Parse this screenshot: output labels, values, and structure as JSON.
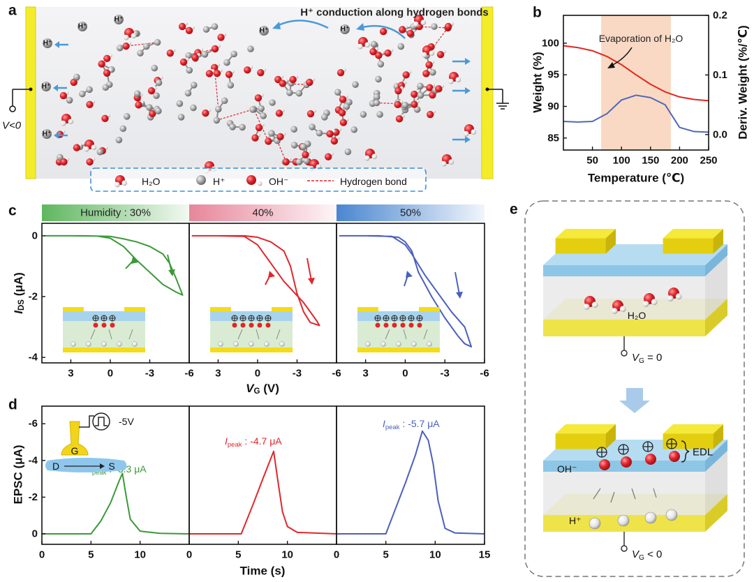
{
  "panel_labels": [
    "a",
    "b",
    "c",
    "d",
    "e"
  ],
  "diagram_a": {
    "title": "H⁺ conduction along  hydrogen bonds",
    "voltage": "V<0",
    "h_labels": [
      "H⁺",
      "H⁺",
      "H⁺",
      "H⁺",
      "H⁺",
      "H⁺",
      "H⁺"
    ],
    "legend": [
      "H₂O",
      "H⁺",
      "OH⁻",
      "Hydrogen bond"
    ]
  },
  "diagram_e": {
    "water": "H₂O",
    "vg_top": {
      "main": "V",
      "sub": "G",
      "rest": " = 0"
    },
    "edl": "EDL",
    "oh": "OH⁻",
    "h": "H⁺",
    "vg_bottom": {
      "main": "V",
      "sub": "G",
      "rest": " < 0"
    }
  },
  "inset_d": {
    "gate": "G",
    "drain": "D",
    "source": "S",
    "pulse": "-5V"
  },
  "chart_data": [
    {
      "type": "line",
      "x_label": "Temperature (℃)",
      "y_label": "Weight (%)",
      "y2_label": "Deriv. Weight (%/℃)",
      "annotation": "Evaporation of H₂O",
      "xlim": [
        0,
        250
      ],
      "xticks": [
        50,
        100,
        150,
        200,
        250
      ],
      "ylim": [
        83.1,
        104.4
      ],
      "yticks": [
        85,
        90,
        95,
        100
      ],
      "y2lim": [
        -0.026,
        0.2
      ],
      "y2ticks": [
        {
          "value": 0,
          "label": "0.0"
        },
        0.1,
        0.2
      ],
      "shade_x": [
        65,
        185
      ],
      "shade_color": "#f9d9c3",
      "x": [
        0,
        25,
        50,
        75,
        100,
        125,
        150,
        175,
        200,
        225,
        250
      ],
      "series": [
        {
          "color": "#e3261f",
          "values": [
            99.6,
            99.3,
            98.8,
            97.9,
            96.6,
            95.0,
            93.5,
            92.3,
            91.5,
            91.1,
            90.9
          ]
        },
        {
          "color": "#5068b8",
          "axis": "y2",
          "values": [
            0.022,
            0.021,
            0.022,
            0.035,
            0.058,
            0.066,
            0.062,
            0.05,
            0.012,
            0.005,
            0.004
          ]
        }
      ]
    },
    {
      "type": "line",
      "title": "Humidity : 30%",
      "title_color": "#5fb65f",
      "y_label": {
        "main": "I",
        "sub": "DS",
        "rest": " (μA)"
      },
      "xlim": [
        5.2,
        -6
      ],
      "xticks": [
        3,
        0,
        -3,
        -6
      ],
      "ylim": [
        -4.18,
        0.41
      ],
      "yticks": [
        0,
        -2,
        -4
      ],
      "x": [
        5,
        2,
        0,
        -1,
        -2,
        -3,
        -4,
        -4.5,
        -5,
        -5.5,
        -5,
        -4,
        -3,
        -2,
        -1,
        0,
        1,
        3,
        5
      ],
      "series": [
        {
          "color": "#3a9a3a",
          "values": [
            0,
            0,
            -0.02,
            -0.1,
            -0.2,
            -0.35,
            -0.6,
            -0.9,
            -1.4,
            -1.95,
            -1.85,
            -1.6,
            -1.2,
            -0.8,
            -0.35,
            -0.08,
            -0.01,
            0,
            0
          ]
        }
      ]
    },
    {
      "type": "line",
      "title": "40%",
      "title_color": "#e7869a",
      "x_label": {
        "main": "V",
        "sub": "G",
        "rest": " (V)"
      },
      "xlim": [
        5.2,
        -6
      ],
      "xticks": [
        3,
        0,
        -3,
        -6
      ],
      "ylim": [
        -4.18,
        0.41
      ],
      "x": [
        5,
        2,
        1,
        0,
        -1,
        -2,
        -2.5,
        -3,
        -3.5,
        -4,
        -4.7,
        -4.5,
        -3.5,
        -2,
        -1,
        0,
        1,
        3,
        5
      ],
      "series": [
        {
          "color": "#e0262b",
          "values": [
            0,
            0,
            0,
            -0.05,
            -0.2,
            -0.5,
            -1.0,
            -1.9,
            -2.5,
            -2.85,
            -2.95,
            -2.8,
            -2.2,
            -1.5,
            -0.9,
            -0.3,
            -0.02,
            0,
            0
          ]
        }
      ]
    },
    {
      "type": "line",
      "title": "50%",
      "title_color": "#4a86d0",
      "xlim": [
        5.2,
        -6
      ],
      "xticks": [
        3,
        0,
        -3,
        -6
      ],
      "ylim": [
        -4.18,
        0.41
      ],
      "x": [
        5,
        2,
        0.5,
        0,
        -0.5,
        -1,
        -2,
        -3,
        -4,
        -4.5,
        -5,
        -4.5,
        -3.5,
        -2.5,
        -1.5,
        -0.5,
        0,
        1,
        3,
        5
      ],
      "series": [
        {
          "color": "#4a5fbf",
          "values": [
            0,
            0,
            -0.05,
            -0.2,
            -0.5,
            -1.2,
            -2,
            -2.7,
            -3.3,
            -3.55,
            -3.65,
            -3.0,
            -2.5,
            -1.9,
            -1.3,
            -0.6,
            -0.3,
            -0.02,
            0,
            0
          ]
        }
      ]
    },
    {
      "type": "line",
      "y_label": "EPSC (μA)",
      "annotation": {
        "main": "I",
        "sub": "peak",
        "rest": " : -3.3 μA"
      },
      "xlim": [
        0,
        15
      ],
      "xticks": [
        0,
        5,
        10
      ],
      "ylim": [
        0.57,
        -6.96
      ],
      "yticks": [
        0,
        -2,
        -4,
        -6
      ],
      "x": [
        0,
        5,
        6,
        7,
        7.8,
        8.2,
        8.6,
        9,
        10,
        12,
        15
      ],
      "series": [
        {
          "color": "#3a9a3a",
          "values": [
            0,
            0,
            -0.7,
            -1.7,
            -2.8,
            -3.3,
            -2.0,
            -0.8,
            -0.15,
            -0.03,
            0
          ]
        }
      ]
    },
    {
      "type": "line",
      "x_label": "Time (s)",
      "annotation": {
        "main": "I",
        "sub": "peak",
        "rest": " : -4.7 μA"
      },
      "xlim": [
        0,
        15
      ],
      "xticks": [
        0,
        5,
        10
      ],
      "ylim": [
        0.57,
        -6.96
      ],
      "x": [
        0,
        5.3,
        6.5,
        7.5,
        8.6,
        9.0,
        9.5,
        10,
        11,
        15
      ],
      "series": [
        {
          "color": "#e0262b",
          "values": [
            0,
            0,
            -1.6,
            -3.0,
            -4.5,
            -3.0,
            -1.2,
            -0.4,
            -0.08,
            0
          ]
        }
      ]
    },
    {
      "type": "line",
      "annotation": {
        "main": "I",
        "sub": "peak",
        "rest": " : -5.7 μA"
      },
      "xlim": [
        0,
        15
      ],
      "xticks": [
        0,
        5,
        10,
        15
      ],
      "ylim": [
        0.57,
        -6.96
      ],
      "x": [
        0,
        5,
        6,
        7,
        8,
        8.7,
        9.3,
        9.8,
        10.3,
        11,
        12,
        15
      ],
      "series": [
        {
          "color": "#4a5fbf",
          "values": [
            0,
            0,
            -1.4,
            -2.8,
            -4.3,
            -5.6,
            -5.1,
            -3.8,
            -1.8,
            -0.3,
            -0.05,
            0
          ]
        }
      ]
    }
  ]
}
